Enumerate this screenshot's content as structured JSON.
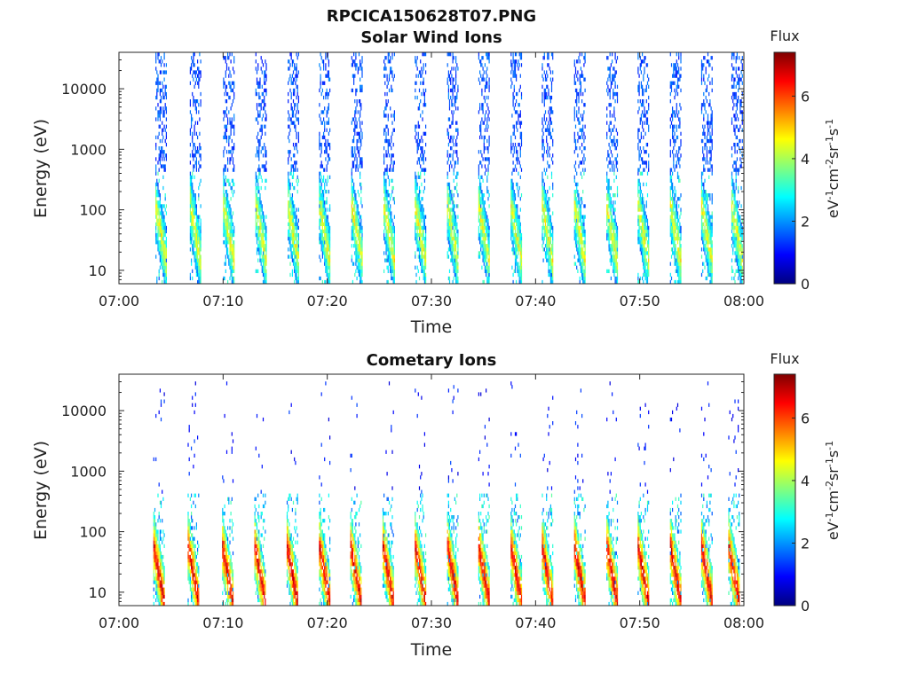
{
  "figure_title": "RPCICA150628T07.PNG",
  "chart_data": [
    {
      "type": "heatmap",
      "title": "Solar Wind Ions",
      "xlabel": "Time",
      "ylabel": "Energy (eV)",
      "x_ticks": [
        "07:00",
        "07:10",
        "07:20",
        "07:30",
        "07:40",
        "07:50",
        "08:00"
      ],
      "xlim": [
        "07:00",
        "08:00"
      ],
      "y_scale": "log",
      "y_ticks": [
        "10",
        "100",
        "1000",
        "10000"
      ],
      "ylim": [
        6,
        40000
      ],
      "colorbar": {
        "label": "Flux",
        "units": [
          "eV",
          "-1",
          "cm",
          "-2",
          "sr",
          "-1",
          "s",
          "-1"
        ],
        "ticks": [
          "0",
          "2",
          "4",
          "6"
        ],
        "range": [
          0,
          7.4
        ],
        "colormap": "jet"
      },
      "sweep_start_minutes": [
        3.5,
        6.8,
        10.0,
        13.1,
        16.2,
        19.2,
        22.3,
        25.4,
        28.4,
        31.5,
        34.5,
        37.6,
        40.6,
        43.7,
        46.8,
        49.8,
        52.9,
        55.9,
        58.8
      ],
      "features": {
        "high_energy_flux": 1.3,
        "low_energy_peak_flux": 4.6,
        "low_energy_peak_energy": 30,
        "high_energy_max": 40000
      }
    },
    {
      "type": "heatmap",
      "title": "Cometary Ions",
      "xlabel": "Time",
      "ylabel": "Energy (eV)",
      "x_ticks": [
        "07:00",
        "07:10",
        "07:20",
        "07:30",
        "07:40",
        "07:50",
        "08:00"
      ],
      "xlim": [
        "07:00",
        "08:00"
      ],
      "y_scale": "log",
      "y_ticks": [
        "10",
        "100",
        "1000",
        "10000"
      ],
      "ylim": [
        6,
        40000
      ],
      "colorbar": {
        "label": "Flux",
        "units": [
          "eV",
          "-1",
          "cm",
          "-2",
          "sr",
          "-1",
          "s",
          "-1"
        ],
        "ticks": [
          "0",
          "2",
          "4",
          "6"
        ],
        "range": [
          0,
          7.4
        ],
        "colormap": "jet"
      },
      "sweep_start_minutes": [
        3.3,
        6.6,
        9.9,
        13.0,
        16.1,
        19.2,
        22.2,
        25.3,
        28.4,
        31.5,
        34.5,
        37.6,
        40.6,
        43.7,
        46.8,
        49.8,
        52.9,
        55.9,
        58.5
      ],
      "features": {
        "high_energy_flux": 0.9,
        "low_energy_peak_flux": 6.8,
        "low_energy_peak_energy": 15,
        "high_energy_max": 30000
      }
    }
  ]
}
